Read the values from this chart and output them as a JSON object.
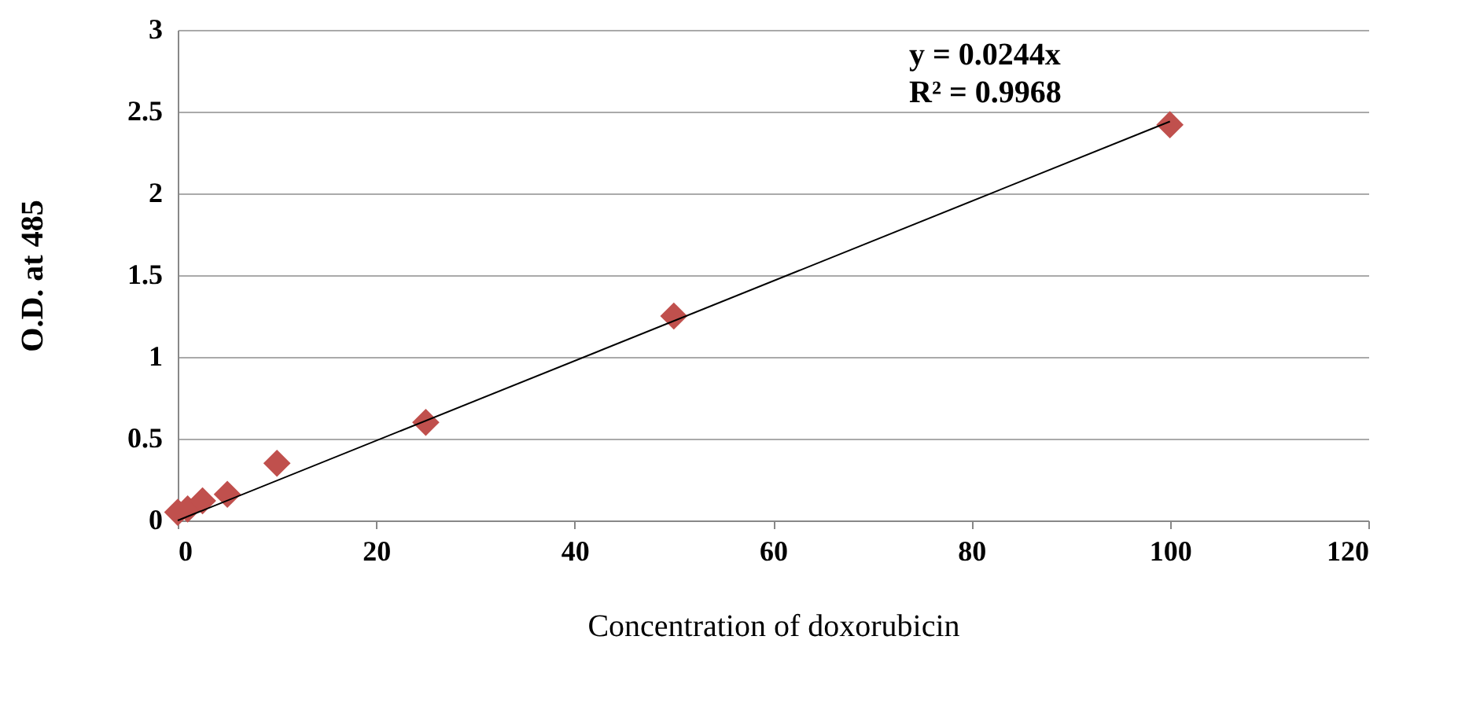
{
  "chart_data": {
    "type": "scatter",
    "xlabel": "Concentration of doxorubicin",
    "ylabel": "O.D. at 485",
    "series": [
      {
        "color": "#c0504d",
        "marker": "diamond",
        "x": [
          0,
          1,
          2.5,
          5,
          10,
          25,
          50,
          100
        ],
        "values": [
          0.05,
          0.07,
          0.12,
          0.16,
          0.35,
          0.6,
          1.25,
          2.42
        ]
      },
      {
        "type": "line",
        "color": "#000000",
        "marker": "none",
        "line_style": "solid",
        "x": [
          0,
          100
        ],
        "values": [
          0,
          2.44
        ]
      }
    ],
    "annotations": [
      "y = 0.0244x",
      "R² = 0.9968"
    ],
    "xlim": [
      0,
      120
    ],
    "xticks": [
      0,
      20,
      40,
      60,
      80,
      100,
      120
    ],
    "ylim": [
      0,
      3
    ],
    "yticks": [
      0,
      0.5,
      1,
      1.5,
      2,
      2.5,
      3
    ],
    "grid": "y"
  }
}
